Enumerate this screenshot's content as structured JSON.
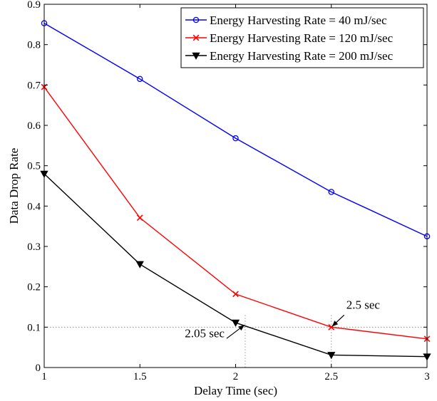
{
  "chart_data": {
    "type": "line",
    "title": "",
    "xlabel": "Delay Time (sec)",
    "ylabel": "Data Drop Rate",
    "xlim": [
      1,
      3
    ],
    "ylim": [
      0,
      0.9
    ],
    "x_ticks": [
      1,
      1.5,
      2,
      2.5,
      3
    ],
    "x_tick_labels": [
      "1",
      "1.5",
      "2",
      "2.5",
      "3"
    ],
    "y_ticks": [
      0,
      0.1,
      0.2,
      0.3,
      0.4,
      0.5,
      0.6,
      0.7,
      0.8,
      0.9
    ],
    "y_tick_labels": [
      "0",
      "0.1",
      "0.2",
      "0.3",
      "0.4",
      "0.5",
      "0.6",
      "0.7",
      "0.8",
      "0.9"
    ],
    "grid": false,
    "legend_position": "top-right",
    "x": [
      1,
      1.5,
      2,
      2.5,
      3
    ],
    "series": [
      {
        "name": "Energy Harvesting Rate = 40 mJ/sec",
        "values": [
          0.853,
          0.715,
          0.568,
          0.435,
          0.325
        ],
        "color": "#0000ff",
        "marker": "circle"
      },
      {
        "name": "Energy Harvesting Rate = 120 mJ/sec",
        "values": [
          0.695,
          0.371,
          0.182,
          0.1,
          0.071
        ],
        "color": "#ff0000",
        "marker": "x"
      },
      {
        "name": "Energy Harvesting Rate = 200 mJ/sec",
        "values": [
          0.48,
          0.256,
          0.111,
          0.031,
          0.027
        ],
        "color": "#000000",
        "marker": "triangle-down"
      }
    ],
    "reference_lines": {
      "y": 0.1,
      "x": [
        2.05,
        2.5
      ],
      "style": "dotted"
    },
    "annotations": [
      {
        "text": "2.5 sec",
        "x": 2.5,
        "y": 0.1
      },
      {
        "text": "2.05 sec",
        "x": 2.05,
        "y": 0.1
      }
    ]
  }
}
